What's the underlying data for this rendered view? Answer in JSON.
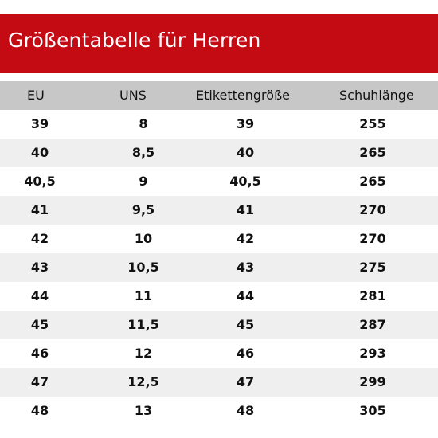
{
  "title": "Größentabelle für Herren",
  "columns": [
    "EU",
    "UNS",
    "Etikettengröße",
    "Schuhlänge"
  ],
  "rows": [
    [
      "39",
      "8",
      "39",
      "255"
    ],
    [
      "40",
      "8,5",
      "40",
      "265"
    ],
    [
      "40,5",
      "9",
      "40,5",
      "265"
    ],
    [
      "41",
      "9,5",
      "41",
      "270"
    ],
    [
      "42",
      "10",
      "42",
      "270"
    ],
    [
      "43",
      "10,5",
      "43",
      "275"
    ],
    [
      "44",
      "11",
      "44",
      "281"
    ],
    [
      "45",
      "11,5",
      "45",
      "287"
    ],
    [
      "46",
      "12",
      "46",
      "293"
    ],
    [
      "47",
      "12,5",
      "47",
      "299"
    ],
    [
      "48",
      "13",
      "48",
      "305"
    ]
  ],
  "colors": {
    "banner": "#c40a12",
    "header": "#c7c7c7",
    "row_alt": "#efefef"
  }
}
